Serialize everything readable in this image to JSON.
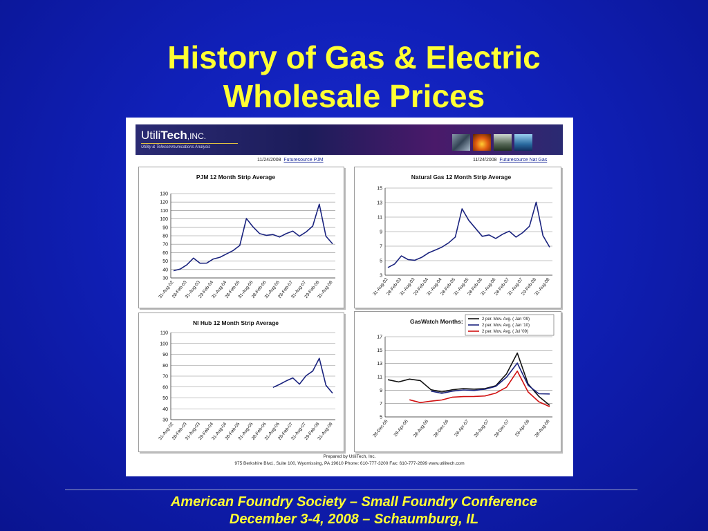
{
  "slide": {
    "title_line1": "History of Gas & Electric",
    "title_line2": "Wholesale Prices",
    "footer_line1": "American Foundry Society – Small Foundry Conference",
    "footer_line2": "December 3-4, 2008 – Schaumburg, IL"
  },
  "banner": {
    "logo_prefix": "Utili",
    "logo_bold": "Tech",
    "logo_suffix": ",INC.",
    "tagline": "Utility & Telecommunications Analysis"
  },
  "sources": {
    "left_date": "11/24/2008",
    "left_link": "Futuresource PJM",
    "right_date": "11/24/2008",
    "right_link": "Futuresource Nat Gas"
  },
  "footer_note": {
    "line1": "Prepared by UtiliTech, Inc.",
    "line2": "975 Berkshire Blvd., Suite 100,  Wyomissing, PA 19610   Phone: 610-777-3200   Fax: 610-777-2699   www.utilitech.com"
  },
  "colors": {
    "series_blue": "#1a237e",
    "series_black": "#111111",
    "series_red": "#d01010",
    "title_yellow": "#ffff33"
  },
  "chart_data": [
    {
      "type": "line",
      "title": "PJM 12 Month Strip Average",
      "ylim": [
        30,
        130
      ],
      "yticks": [
        30,
        40,
        50,
        60,
        70,
        80,
        90,
        100,
        110,
        120,
        130
      ],
      "xticks": [
        "31-Aug-02",
        "28-Feb-03",
        "31-Aug-03",
        "29-Feb-04",
        "31-Aug-04",
        "28-Feb-05",
        "31-Aug-05",
        "28-Feb-06",
        "31-Aug-06",
        "28-Feb-07",
        "31-Aug-07",
        "29-Feb-08",
        "31-Aug-08"
      ],
      "grid": true,
      "series": [
        {
          "values": [
            38,
            41,
            45,
            54,
            47,
            48,
            52,
            55,
            58,
            63,
            68,
            101,
            90,
            83,
            80,
            82,
            78,
            83,
            85,
            80,
            84,
            92,
            117,
            80,
            70
          ]
        }
      ]
    },
    {
      "type": "line",
      "title": "Natural Gas 12 Month Strip Average",
      "ylim": [
        3,
        15
      ],
      "yticks": [
        3,
        5,
        7,
        9,
        11,
        13,
        15
      ],
      "xticks": [
        "31-Aug-02",
        "28-Feb-03",
        "31-Aug-03",
        "29-Feb-04",
        "31-Aug-04",
        "28-Feb-05",
        "31-Aug-05",
        "28-Feb-06",
        "31-Aug-06",
        "28-Feb-07",
        "31-Aug-07",
        "29-Feb-08",
        "31-Aug-08"
      ],
      "grid": true,
      "series": [
        {
          "values": [
            4.0,
            4.6,
            5.6,
            5.2,
            5.0,
            5.5,
            6.0,
            6.5,
            6.8,
            7.5,
            8.2,
            12.2,
            10.5,
            9.5,
            8.3,
            8.6,
            8.0,
            8.7,
            9.0,
            8.3,
            8.8,
            9.8,
            13.0,
            8.5,
            6.8
          ]
        }
      ]
    },
    {
      "type": "line",
      "title": "NI Hub 12 Month Strip Average",
      "ylim": [
        30,
        110
      ],
      "yticks": [
        30,
        40,
        50,
        60,
        70,
        80,
        90,
        100,
        110
      ],
      "xticks": [
        "31-Aug-02",
        "28-Feb-03",
        "31-Aug-03",
        "29-Feb-04",
        "31-Aug-04",
        "28-Feb-05",
        "31-Aug-05",
        "28-Feb-06",
        "31-Aug-06",
        "28-Feb-07",
        "31-Aug-07",
        "29-Feb-08",
        "31-Aug-08"
      ],
      "grid": true,
      "series": [
        {
          "values": [
            null,
            null,
            null,
            null,
            null,
            null,
            null,
            null,
            null,
            null,
            null,
            null,
            null,
            null,
            null,
            60,
            62,
            66,
            68,
            63,
            70,
            75,
            86,
            62,
            54
          ]
        }
      ]
    },
    {
      "type": "line",
      "title": "GasWatch Months:",
      "ylim": [
        5,
        17
      ],
      "yticks": [
        5,
        7,
        9,
        11,
        13,
        15,
        17
      ],
      "xticks": [
        "28-Dec-05",
        "28-Apr-06",
        "28-Aug-06",
        "28-Dec-06",
        "28-Apr-07",
        "28-Aug-07",
        "28-Dec-07",
        "28-Apr-08",
        "28-Aug-08"
      ],
      "grid": true,
      "legend": "top-right",
      "series": [
        {
          "name": "2 per. Mov. Avg. ( Jan '09)",
          "color": "#111111",
          "values": [
            10.5,
            10.3,
            10.6,
            10.5,
            9.0,
            8.8,
            9.0,
            9.3,
            9.1,
            9.3,
            9.6,
            11.5,
            14.5,
            10.0,
            8.0,
            6.8
          ]
        },
        {
          "name": "2 per. Mov. Avg. ( Jan '10)",
          "color": "#1a237e",
          "values": [
            null,
            null,
            null,
            null,
            8.8,
            8.6,
            8.8,
            9.1,
            8.9,
            9.2,
            9.5,
            11.0,
            13.0,
            9.8,
            8.4,
            8.5
          ]
        },
        {
          "name": "2 per. Mov. Avg. ( Jul '09)",
          "color": "#d01010",
          "values": [
            null,
            null,
            7.5,
            7.2,
            7.3,
            7.6,
            7.9,
            8.1,
            8.0,
            8.2,
            8.5,
            9.5,
            11.8,
            8.8,
            7.2,
            6.6
          ]
        }
      ]
    }
  ]
}
